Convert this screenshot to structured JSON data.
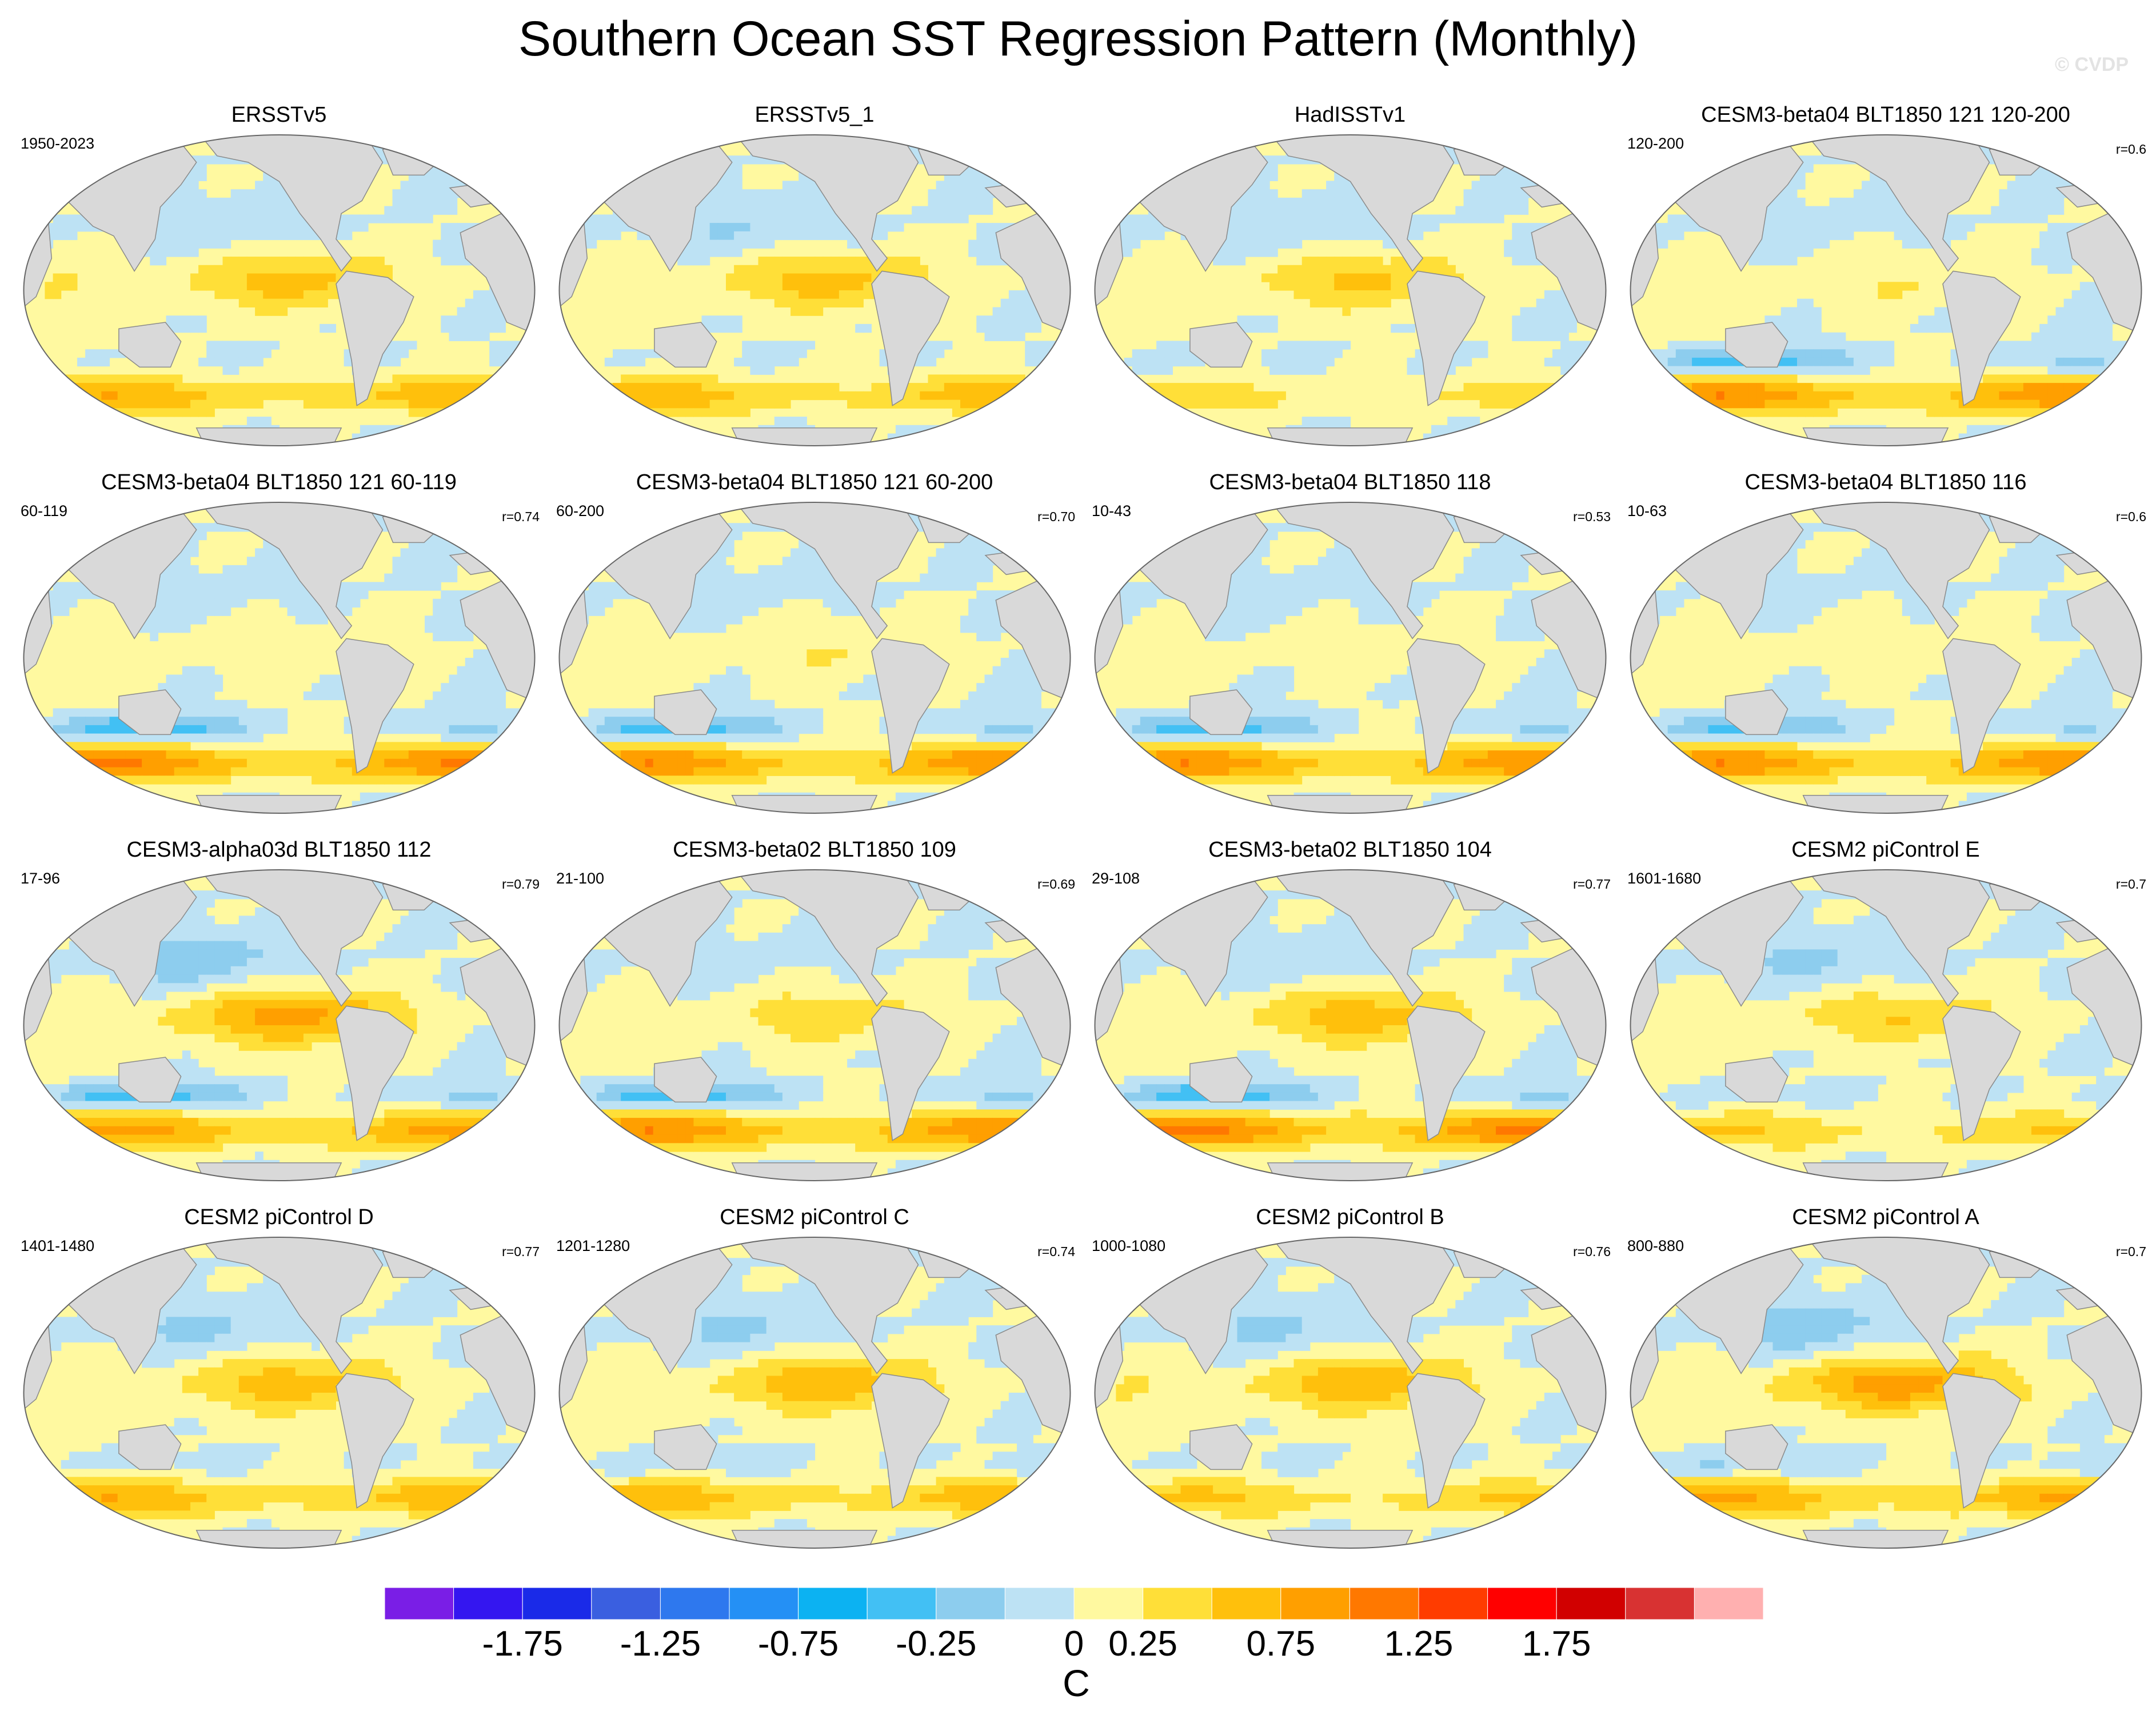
{
  "title": "Southern Ocean SST Regression Pattern (Monthly)",
  "watermark": "© CVDP",
  "chart_data": {
    "type": "contour-map-grid",
    "variable": "SST regression",
    "units": "C",
    "projection": "Robinson, Pacific-centered",
    "panels": [
      {
        "title": "ERSSTv5",
        "years": "1950-2023",
        "corr": "",
        "pattern": {
          "tropical": 0.6,
          "south": 0.75,
          "so_cold": 0.0,
          "npac": -0.2,
          "indian": 0.3
        }
      },
      {
        "title": "ERSSTv5_1",
        "years": "",
        "corr": "",
        "pattern": {
          "tropical": 0.6,
          "south": 0.7,
          "so_cold": 0.0,
          "npac": -0.25,
          "indian": 0.25
        }
      },
      {
        "title": "HadISSTv1",
        "years": "",
        "corr": "",
        "pattern": {
          "tropical": 0.55,
          "south": 0.4,
          "so_cold": 0.05,
          "npac": -0.2,
          "indian": 0.1
        }
      },
      {
        "title": "CESM3-beta04 BLT1850 121 120-200",
        "years": "120-200",
        "corr": "r=0.6",
        "pattern": {
          "tropical": 0.25,
          "south": 1.0,
          "so_cold": 0.7,
          "npac": -0.1,
          "indian": 0.2
        }
      },
      {
        "title": "CESM3-beta04 BLT1850 121 60-119",
        "years": "60-119",
        "corr": "r=0.74",
        "pattern": {
          "tropical": 0.2,
          "south": 1.05,
          "so_cold": 0.75,
          "npac": -0.1,
          "indian": 0.15
        }
      },
      {
        "title": "CESM3-beta04 BLT1850 121 60-200",
        "years": "60-200",
        "corr": "r=0.70",
        "pattern": {
          "tropical": 0.25,
          "south": 1.0,
          "so_cold": 0.7,
          "npac": -0.1,
          "indian": 0.15
        }
      },
      {
        "title": "CESM3-beta04 BLT1850 118",
        "years": "10-43",
        "corr": "r=0.53",
        "pattern": {
          "tropical": 0.15,
          "south": 1.0,
          "so_cold": 0.7,
          "npac": -0.1,
          "indian": 0.1
        }
      },
      {
        "title": "CESM3-beta04 BLT1850 116",
        "years": "10-63",
        "corr": "r=0.6",
        "pattern": {
          "tropical": 0.2,
          "south": 1.0,
          "so_cold": 0.6,
          "npac": -0.05,
          "indian": 0.1
        }
      },
      {
        "title": "CESM3-alpha03d BLT1850 112",
        "years": "17-96",
        "corr": "r=0.79",
        "pattern": {
          "tropical": 0.85,
          "south": 0.9,
          "so_cold": 0.7,
          "npac": -0.4,
          "indian": 0.25
        }
      },
      {
        "title": "CESM3-beta02 BLT1850 109",
        "years": "21-100",
        "corr": "r=0.69",
        "pattern": {
          "tropical": 0.4,
          "south": 1.0,
          "so_cold": 0.7,
          "npac": -0.1,
          "indian": 0.1
        }
      },
      {
        "title": "CESM3-beta02 BLT1850 104",
        "years": "29-108",
        "corr": "r=0.77",
        "pattern": {
          "tropical": 0.65,
          "south": 1.1,
          "so_cold": 0.75,
          "npac": -0.2,
          "indian": 0.15
        }
      },
      {
        "title": "CESM2 piControl E",
        "years": "1601-1680",
        "corr": "r=0.7",
        "pattern": {
          "tropical": 0.5,
          "south": 0.55,
          "so_cold": 0.1,
          "npac": -0.3,
          "indian": 0.2
        }
      },
      {
        "title": "CESM2 piControl D",
        "years": "1401-1480",
        "corr": "r=0.77",
        "pattern": {
          "tropical": 0.65,
          "south": 0.75,
          "so_cold": 0.1,
          "npac": -0.3,
          "indian": 0.25
        }
      },
      {
        "title": "CESM2 piControl C",
        "years": "1201-1280",
        "corr": "r=0.74",
        "pattern": {
          "tropical": 0.7,
          "south": 0.7,
          "so_cold": 0.2,
          "npac": -0.3,
          "indian": 0.25
        }
      },
      {
        "title": "CESM2 piControl B",
        "years": "1000-1080",
        "corr": "r=0.76",
        "pattern": {
          "tropical": 0.7,
          "south": 0.6,
          "so_cold": 0.05,
          "npac": -0.3,
          "indian": 0.3
        }
      },
      {
        "title": "CESM2 piControl A",
        "years": "800-880",
        "corr": "r=0.7",
        "pattern": {
          "tropical": 0.9,
          "south": 0.8,
          "so_cold": 0.3,
          "npac": -0.4,
          "indian": 0.2
        }
      }
    ],
    "colorbar": {
      "colors": [
        "#7a1ee6",
        "#3416f0",
        "#1a2ae8",
        "#3a5fe0",
        "#2e78ee",
        "#2490f5",
        "#0cb2f2",
        "#42c0f4",
        "#8dcdee",
        "#bde2f4",
        "#fff9a0",
        "#ffdf38",
        "#ffc00c",
        "#ff9f00",
        "#ff7800",
        "#ff3c00",
        "#ff0000",
        "#d10000",
        "#d83232",
        "#ffb0b0"
      ],
      "levels": [
        -2.25,
        -2.0,
        -1.75,
        -1.5,
        -1.25,
        -1.0,
        -0.75,
        -0.5,
        -0.25,
        0,
        0.25,
        0.5,
        0.75,
        1.0,
        1.25,
        1.5,
        1.75,
        2.0,
        2.25
      ],
      "tick_labels": [
        "-1.75",
        "-1.25",
        "-0.75",
        "-0.25",
        "0",
        "0.25",
        "0.75",
        "1.25",
        "1.75"
      ]
    }
  }
}
